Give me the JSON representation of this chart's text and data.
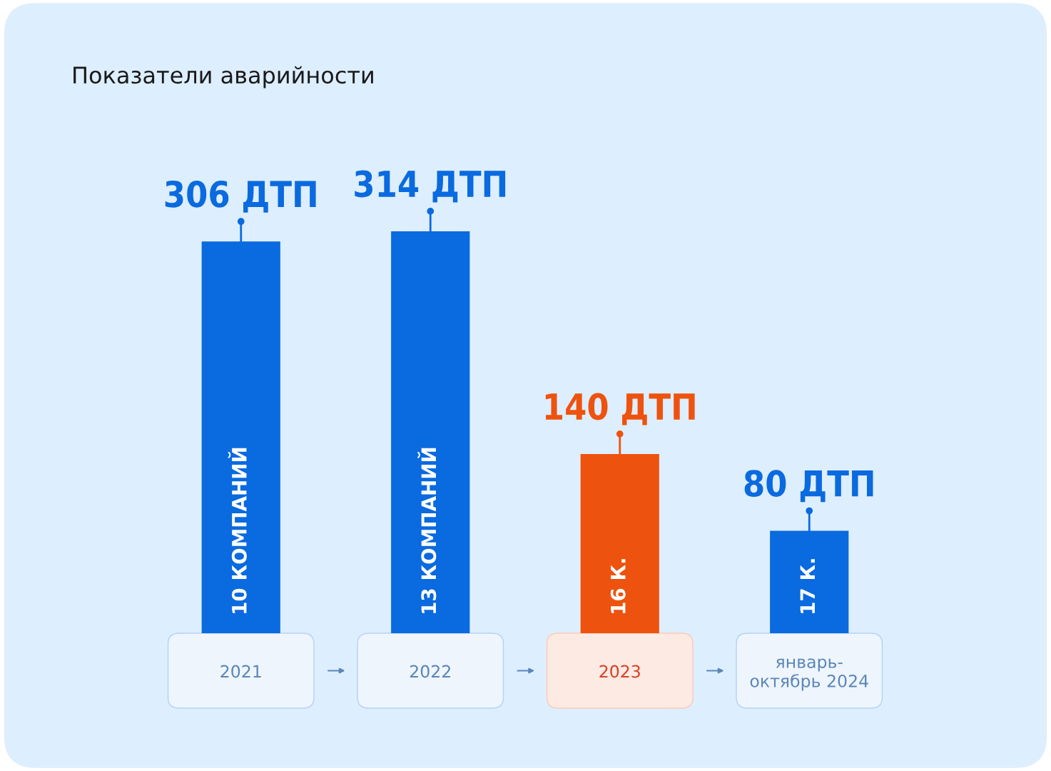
{
  "chart_data": {
    "type": "bar",
    "title": "Показатели аварийности",
    "categories": [
      "2021",
      "2022",
      "2023",
      "январь-\nоктябрь 2024"
    ],
    "values": [
      306,
      314,
      140,
      80
    ],
    "colors": [
      "#0a6adf",
      "#0a6adf",
      "#ee520f",
      "#0a6adf"
    ],
    "value_labels": [
      "306 ДТП",
      "314 ДТП",
      "140 ДТП",
      "80 ДТП"
    ],
    "annotations": [
      "10 КОМПАНИЙ",
      "13 КОМПАНИЙ",
      "16 К.",
      "17 К."
    ]
  }
}
